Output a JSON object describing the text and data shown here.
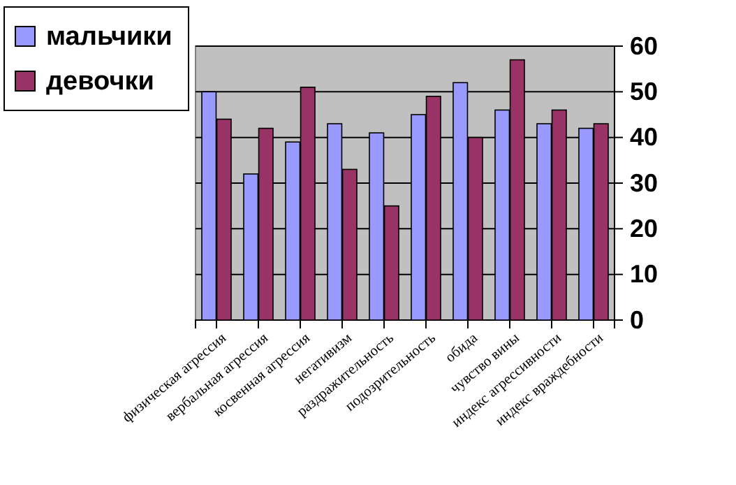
{
  "chart_data": {
    "type": "bar",
    "categories": [
      "физическая агрессия",
      "вербальная агрессия",
      "косвенная агрессия",
      "негативизм",
      "раздражительность",
      "подозрительность",
      "обида",
      "чувство вины",
      "индекс агрессивности",
      "индекс враждебности"
    ],
    "series": [
      {
        "name": "мальчики",
        "color": "#9999ff",
        "values": [
          50,
          32,
          39,
          43,
          41,
          45,
          52,
          46,
          43,
          42
        ]
      },
      {
        "name": "девочки",
        "color": "#993366",
        "values": [
          44,
          42,
          51,
          33,
          25,
          49,
          40,
          57,
          46,
          43
        ]
      }
    ],
    "ylim": [
      0,
      60
    ],
    "yticks": [
      0,
      10,
      20,
      30,
      40,
      50,
      60
    ],
    "grid": "y",
    "legend": "top left"
  }
}
